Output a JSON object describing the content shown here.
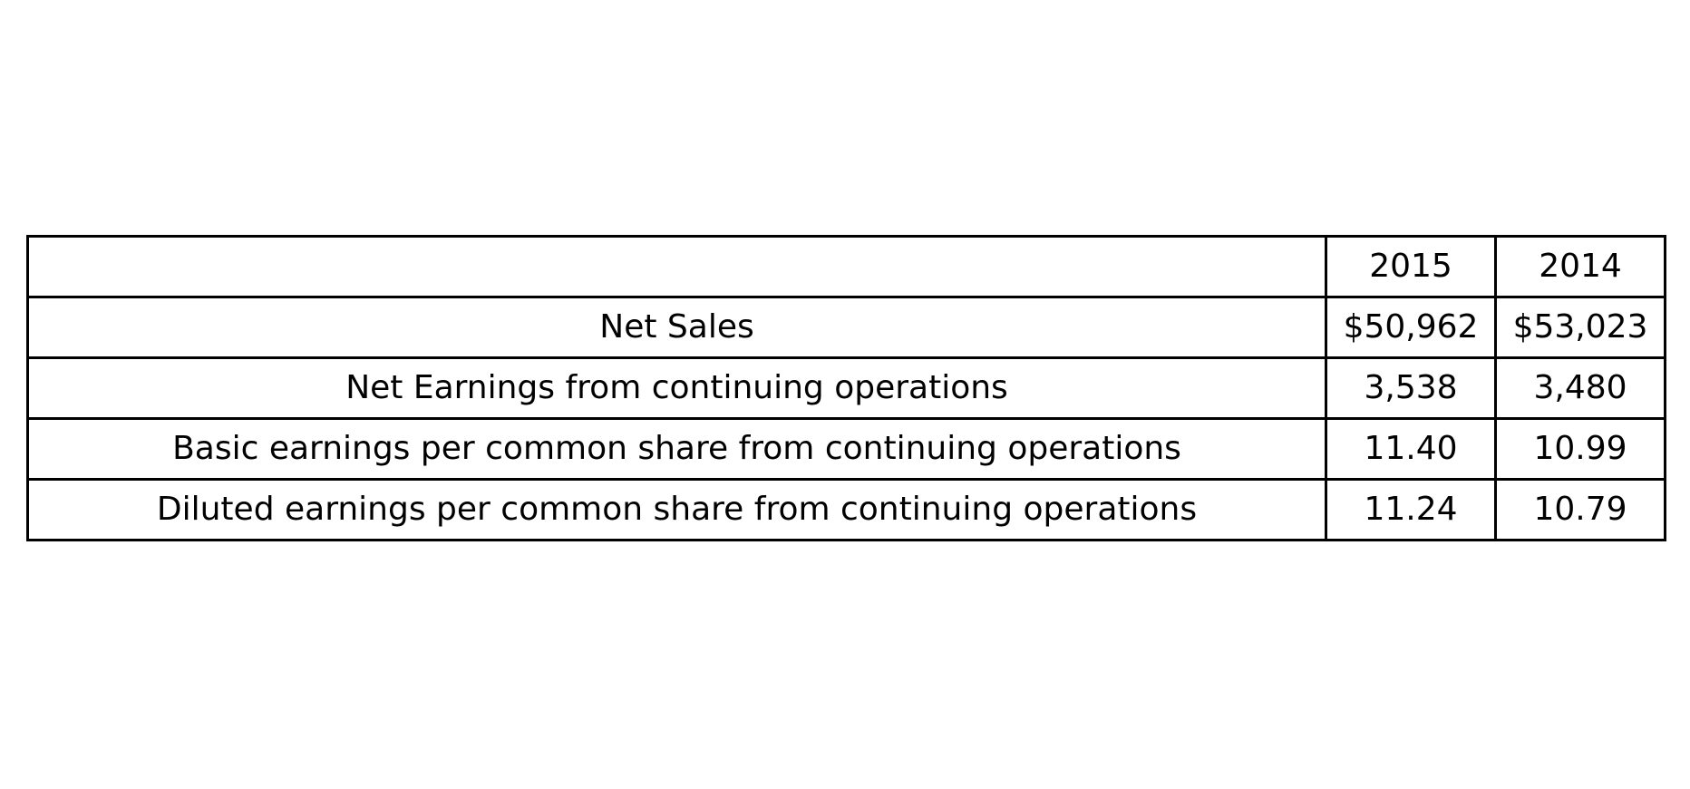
{
  "table": {
    "header": {
      "label": "",
      "years": [
        "2015",
        "2014"
      ]
    },
    "rows": [
      {
        "label": "Net Sales",
        "values": [
          "$50,962",
          "$53,023"
        ]
      },
      {
        "label": "Net Earnings from continuing operations",
        "values": [
          "3,538",
          "3,480"
        ]
      },
      {
        "label": "Basic earnings per common share from continuing operations",
        "values": [
          "11.40",
          "10.99"
        ]
      },
      {
        "label": "Diluted earnings per common share from continuing operations",
        "values": [
          "11.24",
          "10.79"
        ]
      }
    ]
  }
}
